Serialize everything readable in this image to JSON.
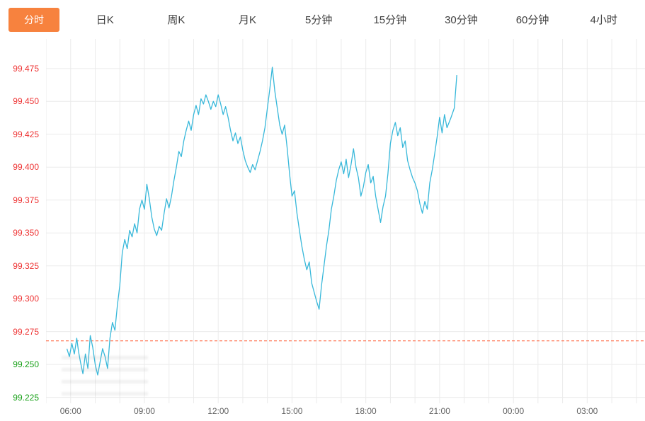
{
  "tabbar": {
    "tabs": [
      {
        "id": "fenshi",
        "label": "分时",
        "active": true
      },
      {
        "id": "ri-k",
        "label": "日K",
        "active": false
      },
      {
        "id": "zhou-k",
        "label": "周K",
        "active": false
      },
      {
        "id": "yue-k",
        "label": "月K",
        "active": false
      },
      {
        "id": "5min",
        "label": "5分钟",
        "active": false
      },
      {
        "id": "15min",
        "label": "15分钟",
        "active": false
      },
      {
        "id": "30min",
        "label": "30分钟",
        "active": false
      },
      {
        "id": "60min",
        "label": "60分钟",
        "active": false
      },
      {
        "id": "4hour",
        "label": "4小时",
        "active": false
      }
    ]
  },
  "colors": {
    "active_tab_bg": "#f7823e",
    "tab_text": "#404040",
    "up_red": "#ee3333",
    "down_green": "#16a016",
    "grid": "#ebebeb",
    "line": "#38b8da",
    "reference_dashed": "#ff5b33",
    "x_label": "#616161"
  },
  "chart_data": {
    "type": "line",
    "title": "",
    "xlabel": "",
    "ylabel": "",
    "legend": "none",
    "grid": true,
    "xlim": [
      5.0,
      29.35
    ],
    "ylim": [
      99.2205,
      99.4975
    ],
    "reference_line": 99.268,
    "y_ticks": [
      {
        "value": 99.475,
        "label": "99.475",
        "trend": "up"
      },
      {
        "value": 99.45,
        "label": "99.450",
        "trend": "up"
      },
      {
        "value": 99.425,
        "label": "99.425",
        "trend": "up"
      },
      {
        "value": 99.4,
        "label": "99.400",
        "trend": "up"
      },
      {
        "value": 99.375,
        "label": "99.375",
        "trend": "up"
      },
      {
        "value": 99.35,
        "label": "99.350",
        "trend": "up"
      },
      {
        "value": 99.325,
        "label": "99.325",
        "trend": "up"
      },
      {
        "value": 99.3,
        "label": "99.300",
        "trend": "up"
      },
      {
        "value": 99.275,
        "label": "99.275",
        "trend": "up"
      },
      {
        "value": 99.25,
        "label": "99.250",
        "trend": "down"
      },
      {
        "value": 99.225,
        "label": "99.225",
        "trend": "down"
      }
    ],
    "x_ticks": [
      {
        "hour": 6,
        "label": "06:00"
      },
      {
        "hour": 9,
        "label": "09:00"
      },
      {
        "hour": 12,
        "label": "12:00"
      },
      {
        "hour": 15,
        "label": "15:00"
      },
      {
        "hour": 18,
        "label": "18:00"
      },
      {
        "hour": 21,
        "label": "21:00"
      },
      {
        "hour": 24,
        "label": "00:00"
      },
      {
        "hour": 27,
        "label": "03:00"
      }
    ],
    "series": [
      {
        "name": "price",
        "points": [
          [
            5.85,
            99.262
          ],
          [
            5.95,
            99.256
          ],
          [
            6.05,
            99.266
          ],
          [
            6.15,
            99.258
          ],
          [
            6.25,
            99.27
          ],
          [
            6.32,
            99.26
          ],
          [
            6.4,
            99.252
          ],
          [
            6.5,
            99.243
          ],
          [
            6.6,
            99.258
          ],
          [
            6.7,
            99.247
          ],
          [
            6.8,
            99.272
          ],
          [
            6.9,
            99.263
          ],
          [
            7.0,
            99.25
          ],
          [
            7.1,
            99.242
          ],
          [
            7.2,
            99.252
          ],
          [
            7.3,
            99.262
          ],
          [
            7.4,
            99.256
          ],
          [
            7.5,
            99.247
          ],
          [
            7.6,
            99.27
          ],
          [
            7.7,
            99.282
          ],
          [
            7.8,
            99.276
          ],
          [
            7.9,
            99.295
          ],
          [
            8.0,
            99.31
          ],
          [
            8.1,
            99.335
          ],
          [
            8.2,
            99.345
          ],
          [
            8.3,
            99.338
          ],
          [
            8.4,
            99.352
          ],
          [
            8.5,
            99.347
          ],
          [
            8.6,
            99.357
          ],
          [
            8.7,
            99.35
          ],
          [
            8.8,
            99.368
          ],
          [
            8.9,
            99.375
          ],
          [
            9.0,
            99.368
          ],
          [
            9.1,
            99.387
          ],
          [
            9.2,
            99.376
          ],
          [
            9.3,
            99.362
          ],
          [
            9.4,
            99.353
          ],
          [
            9.5,
            99.348
          ],
          [
            9.6,
            99.355
          ],
          [
            9.7,
            99.352
          ],
          [
            9.8,
            99.365
          ],
          [
            9.9,
            99.376
          ],
          [
            10.0,
            99.369
          ],
          [
            10.1,
            99.378
          ],
          [
            10.2,
            99.39
          ],
          [
            10.3,
            99.4
          ],
          [
            10.4,
            99.412
          ],
          [
            10.5,
            99.408
          ],
          [
            10.6,
            99.42
          ],
          [
            10.7,
            99.428
          ],
          [
            10.8,
            99.435
          ],
          [
            10.9,
            99.428
          ],
          [
            11.0,
            99.44
          ],
          [
            11.1,
            99.447
          ],
          [
            11.2,
            99.44
          ],
          [
            11.3,
            99.452
          ],
          [
            11.4,
            99.448
          ],
          [
            11.5,
            99.455
          ],
          [
            11.6,
            99.45
          ],
          [
            11.7,
            99.444
          ],
          [
            11.8,
            99.45
          ],
          [
            11.9,
            99.446
          ],
          [
            12.0,
            99.455
          ],
          [
            12.1,
            99.448
          ],
          [
            12.2,
            99.44
          ],
          [
            12.3,
            99.446
          ],
          [
            12.4,
            99.438
          ],
          [
            12.5,
            99.428
          ],
          [
            12.6,
            99.42
          ],
          [
            12.7,
            99.426
          ],
          [
            12.8,
            99.418
          ],
          [
            12.9,
            99.423
          ],
          [
            13.0,
            99.413
          ],
          [
            13.1,
            99.405
          ],
          [
            13.2,
            99.4
          ],
          [
            13.3,
            99.396
          ],
          [
            13.4,
            99.402
          ],
          [
            13.5,
            99.398
          ],
          [
            13.6,
            99.405
          ],
          [
            13.7,
            99.412
          ],
          [
            13.8,
            99.42
          ],
          [
            13.9,
            99.43
          ],
          [
            14.0,
            99.445
          ],
          [
            14.1,
            99.46
          ],
          [
            14.2,
            99.476
          ],
          [
            14.3,
            99.458
          ],
          [
            14.4,
            99.445
          ],
          [
            14.5,
            99.432
          ],
          [
            14.6,
            99.425
          ],
          [
            14.7,
            99.432
          ],
          [
            14.8,
            99.415
          ],
          [
            14.9,
            99.395
          ],
          [
            15.0,
            99.378
          ],
          [
            15.1,
            99.382
          ],
          [
            15.2,
            99.365
          ],
          [
            15.3,
            99.352
          ],
          [
            15.4,
            99.34
          ],
          [
            15.5,
            99.33
          ],
          [
            15.6,
            99.322
          ],
          [
            15.7,
            99.328
          ],
          [
            15.8,
            99.312
          ],
          [
            15.9,
            99.305
          ],
          [
            16.0,
            99.298
          ],
          [
            16.1,
            99.292
          ],
          [
            16.2,
            99.31
          ],
          [
            16.3,
            99.325
          ],
          [
            16.4,
            99.34
          ],
          [
            16.5,
            99.352
          ],
          [
            16.6,
            99.368
          ],
          [
            16.7,
            99.378
          ],
          [
            16.8,
            99.39
          ],
          [
            16.9,
            99.398
          ],
          [
            17.0,
            99.404
          ],
          [
            17.1,
            99.395
          ],
          [
            17.2,
            99.406
          ],
          [
            17.3,
            99.392
          ],
          [
            17.4,
            99.402
          ],
          [
            17.5,
            99.414
          ],
          [
            17.6,
            99.4
          ],
          [
            17.7,
            99.392
          ],
          [
            17.8,
            99.378
          ],
          [
            17.9,
            99.385
          ],
          [
            18.0,
            99.396
          ],
          [
            18.1,
            99.402
          ],
          [
            18.2,
            99.388
          ],
          [
            18.3,
            99.393
          ],
          [
            18.4,
            99.378
          ],
          [
            18.5,
            99.368
          ],
          [
            18.6,
            99.358
          ],
          [
            18.7,
            99.37
          ],
          [
            18.8,
            99.378
          ],
          [
            18.9,
            99.395
          ],
          [
            19.0,
            99.418
          ],
          [
            19.1,
            99.428
          ],
          [
            19.2,
            99.434
          ],
          [
            19.3,
            99.424
          ],
          [
            19.4,
            99.43
          ],
          [
            19.5,
            99.415
          ],
          [
            19.6,
            99.42
          ],
          [
            19.7,
            99.405
          ],
          [
            19.8,
            99.398
          ],
          [
            19.9,
            99.392
          ],
          [
            20.0,
            99.388
          ],
          [
            20.1,
            99.382
          ],
          [
            20.2,
            99.372
          ],
          [
            20.3,
            99.365
          ],
          [
            20.4,
            99.374
          ],
          [
            20.5,
            99.368
          ],
          [
            20.6,
            99.388
          ],
          [
            20.7,
            99.398
          ],
          [
            20.8,
            99.41
          ],
          [
            20.9,
            99.423
          ],
          [
            21.0,
            99.438
          ],
          [
            21.1,
            99.426
          ],
          [
            21.2,
            99.44
          ],
          [
            21.3,
            99.43
          ],
          [
            21.45,
            99.437
          ],
          [
            21.6,
            99.445
          ],
          [
            21.7,
            99.47
          ]
        ]
      }
    ]
  }
}
